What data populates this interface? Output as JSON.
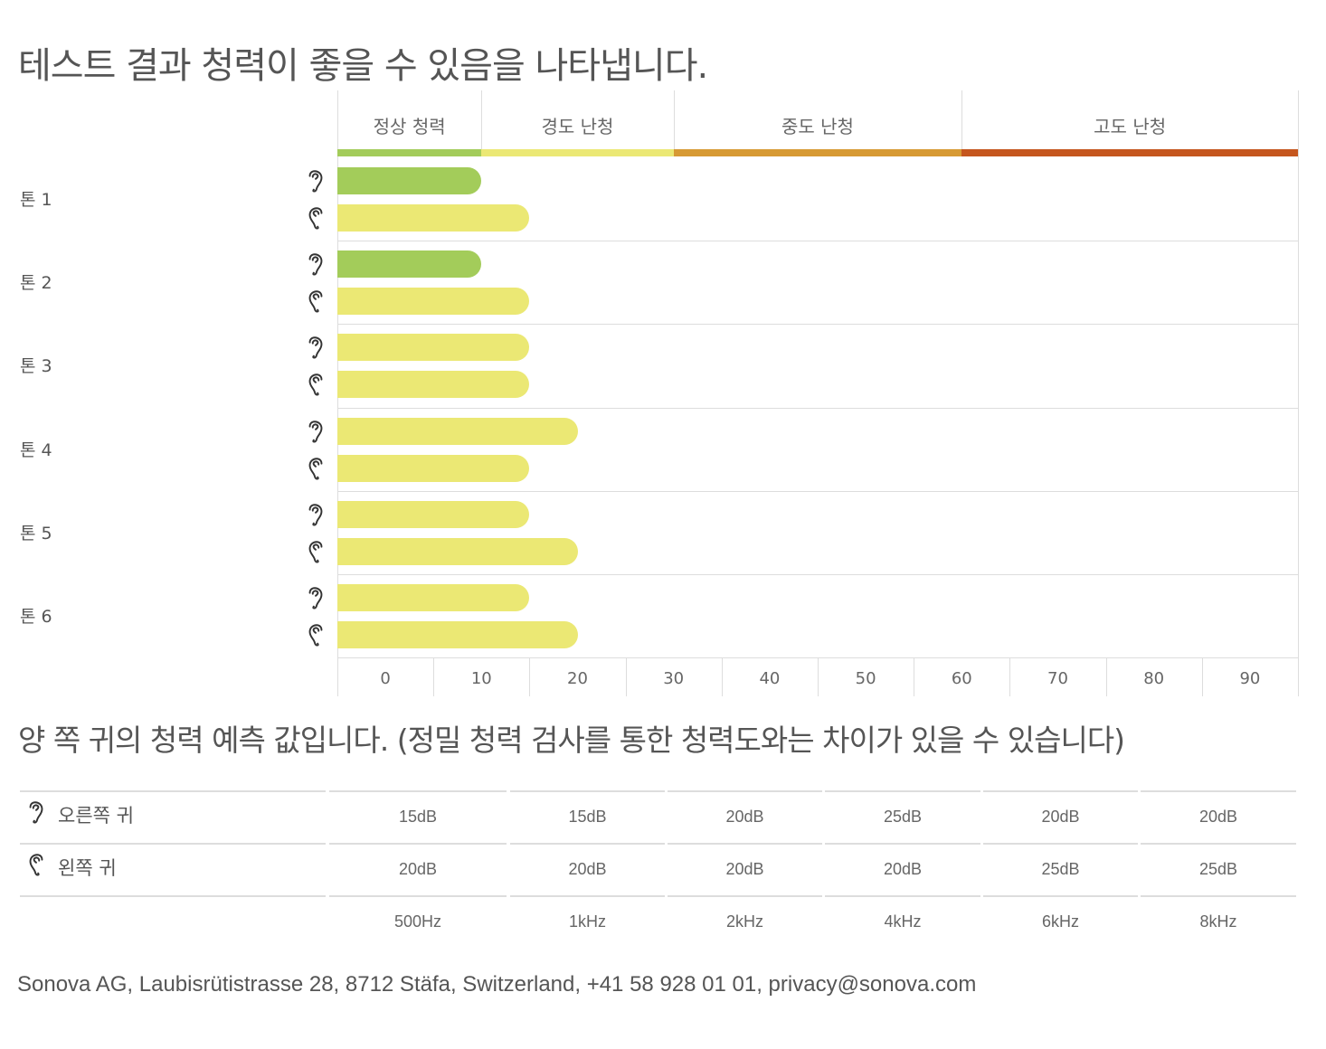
{
  "title": "테스트 결과 청력이 좋을 수 있음을 나타냅니다.",
  "subtitle": "양 쪽 귀의 청력 예측 값입니다. (정밀 청력 검사를 통한 청력도와는 차이가 있을 수 있습니다)",
  "footer": "Sonova AG, Laubisrütistrasse 28, 8712 Stäfa, Switzerland, +41 58 928 01 01, privacy@sonova.com",
  "chart_data": {
    "type": "bar",
    "orientation": "horizontal",
    "xlim": [
      0,
      100
    ],
    "ticks": [
      0,
      10,
      20,
      30,
      40,
      50,
      60,
      70,
      80,
      90
    ],
    "bands": [
      {
        "label": "정상 청력",
        "from": 0,
        "to": 15,
        "color": "#a3cc5a"
      },
      {
        "label": "경도 난청",
        "from": 15,
        "to": 35,
        "color": "#ebe874"
      },
      {
        "label": "중도 난청",
        "from": 35,
        "to": 65,
        "color": "#d79a34"
      },
      {
        "label": "고도 난청",
        "from": 65,
        "to": 100,
        "color": "#c5561e"
      }
    ],
    "categories": [
      "톤 1",
      "톤 2",
      "톤 3",
      "톤 4",
      "톤 5",
      "톤 6"
    ],
    "series": [
      {
        "name": "오른쪽 귀",
        "icon": "right-ear-icon",
        "values": [
          15,
          15,
          20,
          25,
          20,
          20
        ]
      },
      {
        "name": "왼쪽 귀",
        "icon": "left-ear-icon",
        "values": [
          20,
          20,
          20,
          20,
          25,
          25
        ]
      }
    ]
  },
  "table": {
    "rows": [
      {
        "label": "오른쪽 귀",
        "icon": "right-ear-icon",
        "values": [
          "15dB",
          "15dB",
          "20dB",
          "25dB",
          "20dB",
          "20dB"
        ]
      },
      {
        "label": "왼쪽 귀",
        "icon": "left-ear-icon",
        "values": [
          "20dB",
          "20dB",
          "20dB",
          "20dB",
          "25dB",
          "25dB"
        ]
      }
    ],
    "frequencies": [
      "500Hz",
      "1kHz",
      "2kHz",
      "4kHz",
      "6kHz",
      "8kHz"
    ]
  }
}
